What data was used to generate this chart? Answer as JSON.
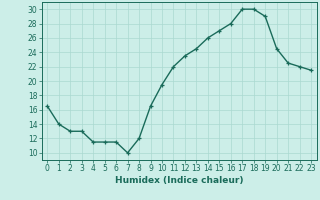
{
  "x": [
    0,
    1,
    2,
    3,
    4,
    5,
    6,
    7,
    8,
    9,
    10,
    11,
    12,
    13,
    14,
    15,
    16,
    17,
    18,
    19,
    20,
    21,
    22,
    23
  ],
  "y": [
    16.5,
    14.0,
    13.0,
    13.0,
    11.5,
    11.5,
    11.5,
    10.0,
    12.0,
    16.5,
    19.5,
    22.0,
    23.5,
    24.5,
    26.0,
    27.0,
    28.0,
    30.0,
    30.0,
    29.0,
    24.5,
    22.5,
    22.0,
    21.5
  ],
  "line_color": "#1a6b5a",
  "marker": "+",
  "bg_color": "#cceee8",
  "grid_color": "#aad9d0",
  "xlabel": "Humidex (Indice chaleur)",
  "xlim": [
    -0.5,
    23.5
  ],
  "ylim": [
    9,
    31
  ],
  "yticks": [
    10,
    12,
    14,
    16,
    18,
    20,
    22,
    24,
    26,
    28,
    30
  ],
  "xticks": [
    0,
    1,
    2,
    3,
    4,
    5,
    6,
    7,
    8,
    9,
    10,
    11,
    12,
    13,
    14,
    15,
    16,
    17,
    18,
    19,
    20,
    21,
    22,
    23
  ],
  "label_fontsize": 6.5,
  "tick_fontsize": 5.5
}
